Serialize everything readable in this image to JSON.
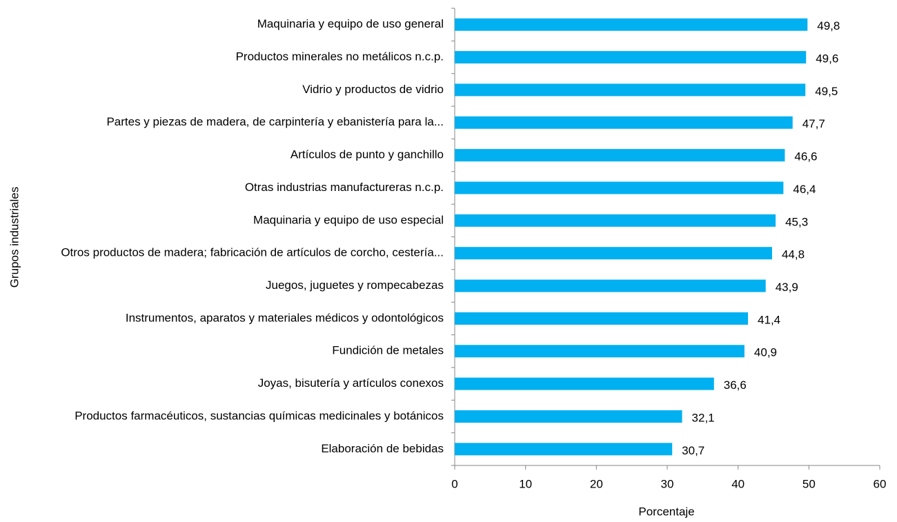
{
  "chart_data": {
    "type": "bar",
    "orientation": "horizontal",
    "x_label": "Porcentaje",
    "y_label": "Grupos industriales",
    "categories": [
      "Maquinaria y equipo de uso general",
      "Productos minerales no metálicos n.c.p.",
      "Vidrio y productos de vidrio",
      "Partes y piezas de madera, de carpintería y ebanistería para la...",
      "Artículos de punto y ganchillo",
      "Otras industrias manufactureras n.c.p.",
      "Maquinaria y equipo de uso especial",
      "Otros productos de madera; fabricación de artículos de corcho, cestería...",
      "Juegos, juguetes y rompecabezas",
      "Instrumentos, aparatos y materiales médicos y odontológicos",
      "Fundición de metales",
      "Joyas, bisutería y artículos conexos",
      "Productos farmacéuticos, sustancias químicas medicinales y botánicos",
      "Elaboración de bebidas"
    ],
    "values": [
      49.8,
      49.6,
      49.5,
      47.7,
      46.6,
      46.4,
      45.3,
      44.8,
      43.9,
      41.4,
      40.9,
      36.6,
      32.1,
      30.7
    ],
    "value_labels": [
      "49,8",
      "49,6",
      "49,5",
      "47,7",
      "46,6",
      "46,4",
      "45,3",
      "44,8",
      "43,9",
      "41,4",
      "40,9",
      "36,6",
      "32,1",
      "30,7"
    ],
    "color": "#00b0f0",
    "xlim": [
      0,
      60
    ],
    "xticks": [
      0,
      10,
      20,
      30,
      40,
      50,
      60
    ],
    "grid": false
  }
}
